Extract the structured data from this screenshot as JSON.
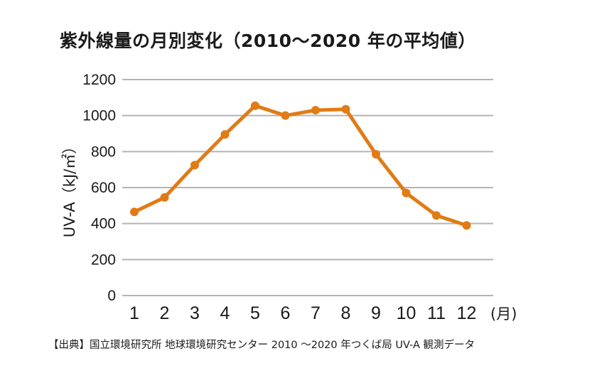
{
  "title": "紫外線量の月別変化（2010～2020 年の平均値）",
  "source": "【出典】国立環境研究所 地球環境研究センター 2010 ～2020 年つくば局 UV-A 観測データ",
  "colors": {
    "line": "#e07b16",
    "grid": "#b3b3b3",
    "text": "#1a1a1a"
  },
  "chart_data": {
    "type": "line",
    "title": "紫外線量の月別変化（2010～2020 年の平均値）",
    "ylabel": "UV-A（kJ/㎡）",
    "xunit": "(月)",
    "ylim": [
      0,
      1200
    ],
    "yticks": [
      0,
      200,
      400,
      600,
      800,
      1000,
      1200
    ],
    "grid": true,
    "categories": [
      "1",
      "2",
      "3",
      "4",
      "5",
      "6",
      "7",
      "8",
      "9",
      "10",
      "11",
      "12"
    ],
    "values": [
      465,
      545,
      725,
      895,
      1055,
      1000,
      1030,
      1035,
      785,
      570,
      445,
      390
    ]
  }
}
